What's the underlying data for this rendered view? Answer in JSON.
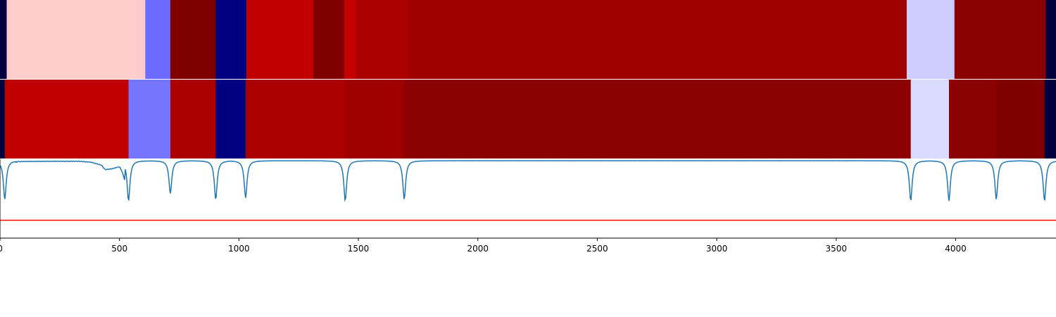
{
  "chart_data": {
    "type": "heatmap",
    "x_range": [
      0,
      4420
    ],
    "xticks": [
      0,
      500,
      1000,
      1500,
      2000,
      2500,
      3000,
      3500,
      4000
    ],
    "xtick_labels": [
      "0",
      "500",
      "1000",
      "1500",
      "2000",
      "2500",
      "3000",
      "3500",
      "4000"
    ],
    "heatmap_rows": [
      {
        "name": "segmentation-row-1",
        "segments": [
          {
            "start": 0,
            "end": 28,
            "color": "#00003f"
          },
          {
            "start": 28,
            "end": 608,
            "color": "#ffcccc"
          },
          {
            "start": 608,
            "end": 713,
            "color": "#6b6bff"
          },
          {
            "start": 713,
            "end": 903,
            "color": "#800000"
          },
          {
            "start": 903,
            "end": 1031,
            "color": "#000080"
          },
          {
            "start": 1031,
            "end": 1312,
            "color": "#c10000"
          },
          {
            "start": 1312,
            "end": 1441,
            "color": "#800000"
          },
          {
            "start": 1441,
            "end": 1490,
            "color": "#c40000"
          },
          {
            "start": 1490,
            "end": 1710,
            "color": "#aa0000"
          },
          {
            "start": 1710,
            "end": 3795,
            "color": "#9e0000"
          },
          {
            "start": 3795,
            "end": 3995,
            "color": "#ccccff"
          },
          {
            "start": 3995,
            "end": 4377,
            "color": "#8b0000"
          },
          {
            "start": 4377,
            "end": 4420,
            "color": "#00003f"
          }
        ]
      },
      {
        "name": "segmentation-row-2",
        "segments": [
          {
            "start": 0,
            "end": 20,
            "color": "#00003f"
          },
          {
            "start": 20,
            "end": 538,
            "color": "#c10000"
          },
          {
            "start": 538,
            "end": 713,
            "color": "#7575ff"
          },
          {
            "start": 713,
            "end": 903,
            "color": "#aa0000"
          },
          {
            "start": 903,
            "end": 1028,
            "color": "#000080"
          },
          {
            "start": 1028,
            "end": 1445,
            "color": "#aa0000"
          },
          {
            "start": 1445,
            "end": 1692,
            "color": "#9e0000"
          },
          {
            "start": 1692,
            "end": 3812,
            "color": "#8b0000"
          },
          {
            "start": 3812,
            "end": 3972,
            "color": "#dadaff"
          },
          {
            "start": 3972,
            "end": 4170,
            "color": "#8b0000"
          },
          {
            "start": 4170,
            "end": 4372,
            "color": "#800000"
          },
          {
            "start": 4372,
            "end": 4420,
            "color": "#00003f"
          }
        ]
      }
    ],
    "signal": {
      "name": "boundary-score",
      "color": "#1f77b4",
      "y_range": [
        -2.6,
        0.05
      ],
      "baseline": 0,
      "baseline_noise": 0.015,
      "drop_width": 7,
      "dips": [
        {
          "x": 20,
          "depth": -1.3
        },
        {
          "x": 538,
          "depth": -1.35
        },
        {
          "x": 713,
          "depth": -1.1
        },
        {
          "x": 903,
          "depth": -1.3
        },
        {
          "x": 1028,
          "depth": -1.25
        },
        {
          "x": 1445,
          "depth": -1.35
        },
        {
          "x": 1692,
          "depth": -1.3
        },
        {
          "x": 3812,
          "depth": -1.35
        },
        {
          "x": 3972,
          "depth": -1.35
        },
        {
          "x": 4170,
          "depth": -1.3
        },
        {
          "x": 4372,
          "depth": -1.35
        }
      ],
      "dips_partial": [
        {
          "x": 1,
          "depth": -0.2
        }
      ],
      "extra_points": [
        {
          "x": 60,
          "y": -0.03
        },
        {
          "x": 210,
          "y": -0.02
        },
        {
          "x": 330,
          "y": -0.02
        },
        {
          "x": 380,
          "y": -0.05
        },
        {
          "x": 425,
          "y": -0.15
        },
        {
          "x": 440,
          "y": -0.3
        },
        {
          "x": 470,
          "y": -0.27
        },
        {
          "x": 500,
          "y": -0.2
        },
        {
          "x": 510,
          "y": -0.35
        },
        {
          "x": 522,
          "y": -0.65
        }
      ],
      "threshold": {
        "value": -2.0,
        "color": "#ff0000"
      }
    }
  }
}
